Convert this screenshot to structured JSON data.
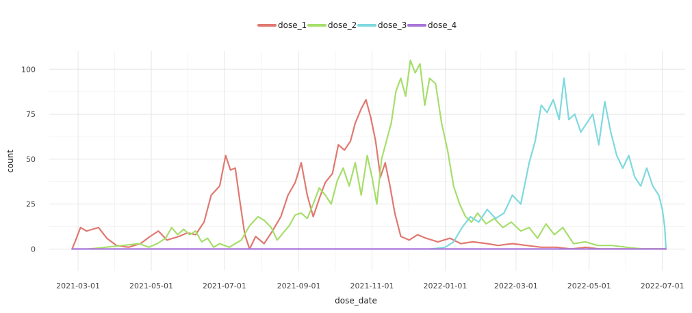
{
  "chart_data": {
    "type": "line",
    "title": "",
    "xlabel": "dose_date",
    "ylabel": "count",
    "x_start": "2021-02-24",
    "x_end": "2022-07-04",
    "xlim": [
      "2021-02-05",
      "2022-07-20"
    ],
    "ylim": [
      -12,
      110
    ],
    "x_ticks": [
      "2021-03-01",
      "2021-05-01",
      "2021-07-01",
      "2021-09-01",
      "2021-11-01",
      "2022-01-01",
      "2022-03-01",
      "2022-05-01",
      "2022-07-01"
    ],
    "y_ticks": [
      0,
      25,
      50,
      75,
      100
    ],
    "grid": true,
    "legend_position": "top",
    "series": [
      {
        "name": "dose_1",
        "color": "#E07870",
        "points": [
          [
            "2021-02-24",
            0
          ],
          [
            "2021-02-27",
            5
          ],
          [
            "2021-03-03",
            12
          ],
          [
            "2021-03-08",
            10
          ],
          [
            "2021-03-13",
            11
          ],
          [
            "2021-03-18",
            12
          ],
          [
            "2021-03-25",
            6
          ],
          [
            "2021-04-02",
            2
          ],
          [
            "2021-04-12",
            1
          ],
          [
            "2021-04-22",
            3
          ],
          [
            "2021-04-30",
            7
          ],
          [
            "2021-05-07",
            10
          ],
          [
            "2021-05-14",
            5
          ],
          [
            "2021-05-24",
            7
          ],
          [
            "2021-05-31",
            9
          ],
          [
            "2021-06-07",
            8
          ],
          [
            "2021-06-14",
            15
          ],
          [
            "2021-06-20",
            30
          ],
          [
            "2021-06-27",
            35
          ],
          [
            "2021-07-02",
            52
          ],
          [
            "2021-07-06",
            44
          ],
          [
            "2021-07-10",
            45
          ],
          [
            "2021-07-14",
            26
          ],
          [
            "2021-07-18",
            8
          ],
          [
            "2021-07-22",
            0
          ],
          [
            "2021-07-27",
            7
          ],
          [
            "2021-08-03",
            3
          ],
          [
            "2021-08-10",
            10
          ],
          [
            "2021-08-17",
            18
          ],
          [
            "2021-08-23",
            30
          ],
          [
            "2021-08-29",
            37
          ],
          [
            "2021-09-03",
            48
          ],
          [
            "2021-09-08",
            30
          ],
          [
            "2021-09-13",
            18
          ],
          [
            "2021-09-18",
            28
          ],
          [
            "2021-09-23",
            37
          ],
          [
            "2021-09-29",
            42
          ],
          [
            "2021-10-04",
            58
          ],
          [
            "2021-10-09",
            55
          ],
          [
            "2021-10-14",
            60
          ],
          [
            "2021-10-18",
            70
          ],
          [
            "2021-10-23",
            78
          ],
          [
            "2021-10-27",
            83
          ],
          [
            "2021-10-31",
            73
          ],
          [
            "2021-11-04",
            60
          ],
          [
            "2021-11-08",
            40
          ],
          [
            "2021-11-12",
            48
          ],
          [
            "2021-11-16",
            35
          ],
          [
            "2021-11-20",
            20
          ],
          [
            "2021-11-25",
            7
          ],
          [
            "2021-12-02",
            5
          ],
          [
            "2021-12-09",
            8
          ],
          [
            "2021-12-16",
            6
          ],
          [
            "2021-12-26",
            4
          ],
          [
            "2022-01-05",
            6
          ],
          [
            "2022-01-14",
            3
          ],
          [
            "2022-01-24",
            4
          ],
          [
            "2022-02-05",
            3
          ],
          [
            "2022-02-14",
            2
          ],
          [
            "2022-02-26",
            3
          ],
          [
            "2022-03-10",
            2
          ],
          [
            "2022-03-22",
            1
          ],
          [
            "2022-04-04",
            1
          ],
          [
            "2022-04-16",
            0
          ],
          [
            "2022-04-28",
            1
          ],
          [
            "2022-05-10",
            0
          ],
          [
            "2022-05-22",
            0
          ],
          [
            "2022-06-05",
            0
          ],
          [
            "2022-06-20",
            0
          ],
          [
            "2022-07-04",
            0
          ]
        ]
      },
      {
        "name": "dose_2",
        "color": "#A6DE6B",
        "points": [
          [
            "2021-03-10",
            0
          ],
          [
            "2021-03-24",
            1
          ],
          [
            "2021-04-07",
            2
          ],
          [
            "2021-04-21",
            3
          ],
          [
            "2021-04-29",
            1
          ],
          [
            "2021-05-06",
            3
          ],
          [
            "2021-05-13",
            6
          ],
          [
            "2021-05-18",
            12
          ],
          [
            "2021-05-23",
            8
          ],
          [
            "2021-05-28",
            11
          ],
          [
            "2021-06-02",
            8
          ],
          [
            "2021-06-07",
            10
          ],
          [
            "2021-06-12",
            4
          ],
          [
            "2021-06-17",
            6
          ],
          [
            "2021-06-22",
            1
          ],
          [
            "2021-06-27",
            3
          ],
          [
            "2021-07-05",
            1
          ],
          [
            "2021-07-10",
            3
          ],
          [
            "2021-07-15",
            5
          ],
          [
            "2021-07-22",
            13
          ],
          [
            "2021-07-29",
            18
          ],
          [
            "2021-08-03",
            16
          ],
          [
            "2021-08-09",
            12
          ],
          [
            "2021-08-14",
            5
          ],
          [
            "2021-08-19",
            9
          ],
          [
            "2021-08-24",
            13
          ],
          [
            "2021-08-29",
            19
          ],
          [
            "2021-09-03",
            20
          ],
          [
            "2021-09-08",
            17
          ],
          [
            "2021-09-13",
            25
          ],
          [
            "2021-09-18",
            34
          ],
          [
            "2021-09-23",
            30
          ],
          [
            "2021-09-28",
            25
          ],
          [
            "2021-10-03",
            38
          ],
          [
            "2021-10-08",
            45
          ],
          [
            "2021-10-13",
            35
          ],
          [
            "2021-10-18",
            48
          ],
          [
            "2021-10-23",
            30
          ],
          [
            "2021-10-28",
            52
          ],
          [
            "2021-11-01",
            40
          ],
          [
            "2021-11-05",
            25
          ],
          [
            "2021-11-09",
            50
          ],
          [
            "2021-11-13",
            60
          ],
          [
            "2021-11-17",
            70
          ],
          [
            "2021-11-21",
            88
          ],
          [
            "2021-11-25",
            95
          ],
          [
            "2021-11-29",
            85
          ],
          [
            "2021-12-03",
            105
          ],
          [
            "2021-12-07",
            98
          ],
          [
            "2021-12-11",
            103
          ],
          [
            "2021-12-15",
            80
          ],
          [
            "2021-12-19",
            95
          ],
          [
            "2021-12-24",
            92
          ],
          [
            "2021-12-29",
            70
          ],
          [
            "2022-01-03",
            55
          ],
          [
            "2022-01-08",
            35
          ],
          [
            "2022-01-13",
            25
          ],
          [
            "2022-01-18",
            18
          ],
          [
            "2022-01-23",
            15
          ],
          [
            "2022-01-28",
            20
          ],
          [
            "2022-02-04",
            14
          ],
          [
            "2022-02-11",
            17
          ],
          [
            "2022-02-18",
            12
          ],
          [
            "2022-02-25",
            15
          ],
          [
            "2022-03-05",
            10
          ],
          [
            "2022-03-12",
            12
          ],
          [
            "2022-03-19",
            6
          ],
          [
            "2022-03-26",
            14
          ],
          [
            "2022-04-02",
            8
          ],
          [
            "2022-04-09",
            12
          ],
          [
            "2022-04-18",
            3
          ],
          [
            "2022-04-28",
            4
          ],
          [
            "2022-05-08",
            2
          ],
          [
            "2022-05-20",
            2
          ],
          [
            "2022-06-01",
            1
          ],
          [
            "2022-06-15",
            0
          ],
          [
            "2022-07-04",
            0
          ]
        ]
      },
      {
        "name": "dose_3",
        "color": "#7ED9DE",
        "points": [
          [
            "2021-12-20",
            0
          ],
          [
            "2022-01-01",
            1
          ],
          [
            "2022-01-08",
            4
          ],
          [
            "2022-01-15",
            12
          ],
          [
            "2022-01-22",
            18
          ],
          [
            "2022-01-29",
            15
          ],
          [
            "2022-02-05",
            22
          ],
          [
            "2022-02-12",
            17
          ],
          [
            "2022-02-19",
            20
          ],
          [
            "2022-02-26",
            30
          ],
          [
            "2022-03-05",
            25
          ],
          [
            "2022-03-12",
            48
          ],
          [
            "2022-03-17",
            60
          ],
          [
            "2022-03-22",
            80
          ],
          [
            "2022-03-27",
            76
          ],
          [
            "2022-04-01",
            83
          ],
          [
            "2022-04-06",
            72
          ],
          [
            "2022-04-10",
            95
          ],
          [
            "2022-04-14",
            72
          ],
          [
            "2022-04-19",
            75
          ],
          [
            "2022-04-24",
            65
          ],
          [
            "2022-04-29",
            70
          ],
          [
            "2022-05-04",
            75
          ],
          [
            "2022-05-09",
            58
          ],
          [
            "2022-05-14",
            82
          ],
          [
            "2022-05-19",
            65
          ],
          [
            "2022-05-24",
            52
          ],
          [
            "2022-05-29",
            45
          ],
          [
            "2022-06-03",
            52
          ],
          [
            "2022-06-08",
            40
          ],
          [
            "2022-06-13",
            35
          ],
          [
            "2022-06-18",
            45
          ],
          [
            "2022-06-23",
            35
          ],
          [
            "2022-06-28",
            30
          ],
          [
            "2022-07-01",
            22
          ],
          [
            "2022-07-03",
            12
          ],
          [
            "2022-07-04",
            0
          ]
        ]
      },
      {
        "name": "dose_4",
        "color": "#A875D9",
        "points": [
          [
            "2021-02-24",
            0
          ],
          [
            "2021-06-01",
            0
          ],
          [
            "2021-10-01",
            0
          ],
          [
            "2022-02-01",
            0
          ],
          [
            "2022-05-01",
            0
          ],
          [
            "2022-06-15",
            0
          ],
          [
            "2022-07-04",
            0
          ]
        ]
      }
    ]
  }
}
